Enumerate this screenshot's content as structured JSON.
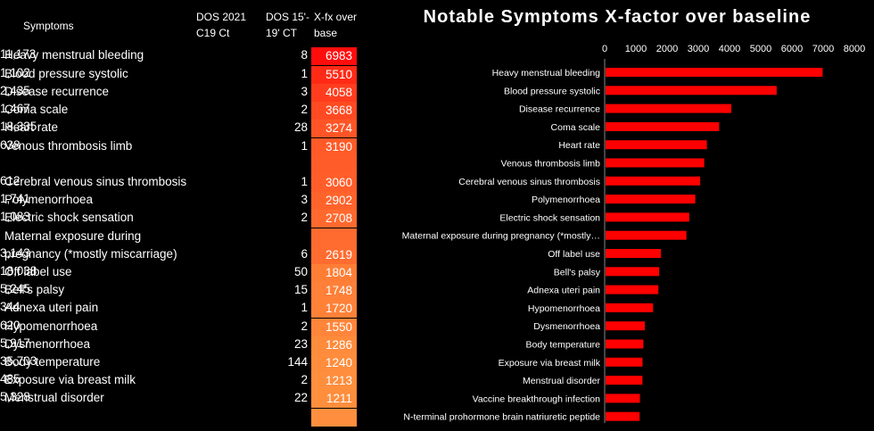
{
  "table": {
    "headers": {
      "symptoms": "Symptoms",
      "dos2021": [
        "DOS 2021",
        "C19 Ct"
      ],
      "dos15": [
        "DOS 15'-",
        "19' CT"
      ],
      "xfx": [
        "X-fx over",
        "base"
      ]
    },
    "rows": [
      {
        "symptom": "Heavy menstrual bleeding",
        "c19": "11,173",
        "ct": "8",
        "xfx": "6983"
      },
      {
        "symptom": "Blood pressure systolic",
        "c19": "1,102",
        "ct": "1",
        "xfx": "5510"
      },
      {
        "symptom": "Disease recurrence",
        "c19": "2,435",
        "ct": "3",
        "xfx": "4058"
      },
      {
        "symptom": "Coma scale",
        "c19": "1,467",
        "ct": "2",
        "xfx": "3668"
      },
      {
        "symptom": "Heart rate",
        "c19": "18,335",
        "ct": "28",
        "xfx": "3274"
      },
      {
        "symptom": "Venous thrombosis limb",
        "c19": "638",
        "ct": "1",
        "xfx": "3190"
      },
      {
        "symptom": "Cerebral venous sinus thrombosis",
        "c19": "612",
        "ct": "1",
        "xfx": "3060"
      },
      {
        "symptom": "Polymenorrhoea",
        "c19": "1,741",
        "ct": "3",
        "xfx": "2902"
      },
      {
        "symptom": "Electric shock sensation",
        "c19": "1,083",
        "ct": "2",
        "xfx": "2708"
      },
      {
        "symptom": "pregnancy (*mostly miscarriage)",
        "symptom_line1": "Maternal exposure during",
        "c19": "3,143",
        "ct": "6",
        "xfx": "2619"
      },
      {
        "symptom": "Off label use",
        "c19": "18,038",
        "ct": "50",
        "xfx": "1804"
      },
      {
        "symptom": "Bell's palsy",
        "c19": "5,245",
        "ct": "15",
        "xfx": "1748"
      },
      {
        "symptom": "Adnexa uteri pain",
        "c19": "344",
        "ct": "1",
        "xfx": "1720"
      },
      {
        "symptom": "Hypomenorrhoea",
        "c19": "620",
        "ct": "2",
        "xfx": "1550"
      },
      {
        "symptom": "Dysmenorrhoea",
        "c19": "5,917",
        "ct": "23",
        "xfx": "1286"
      },
      {
        "symptom": "Body temperature",
        "c19": "35,703",
        "ct": "144",
        "xfx": "1240"
      },
      {
        "symptom": "Exposure via breast milk",
        "c19": "485",
        "ct": "2",
        "xfx": "1213"
      },
      {
        "symptom": "Menstrual disorder",
        "c19": "5,328",
        "ct": "22",
        "xfx": "1211"
      }
    ]
  },
  "chart_data": {
    "type": "bar",
    "orientation": "horizontal",
    "title": "Notable Symptoms X-factor over baseline",
    "xlim": [
      0,
      8000
    ],
    "xticks": [
      "0",
      "1000",
      "2000",
      "3000",
      "4000",
      "5000",
      "6000",
      "7000",
      "8000"
    ],
    "axis_position": "top",
    "grid": false,
    "bar_color": "#ff0000",
    "categories": [
      "Heavy menstrual bleeding",
      "Blood pressure systolic",
      "Disease recurrence",
      "Coma scale",
      "Heart rate",
      "Venous thrombosis limb",
      "Cerebral venous sinus thrombosis",
      "Polymenorrhoea",
      "Electric shock sensation",
      "Maternal exposure during pregnancy (*mostly…",
      "Off label use",
      "Bell's palsy",
      "Adnexa uteri pain",
      "Hypomenorrhoea",
      "Dysmenorrhoea",
      "Body temperature",
      "Exposure via breast milk",
      "Menstrual disorder",
      "Vaccine breakthrough infection",
      "N-terminal prohormone brain natriuretic peptide"
    ],
    "values": [
      6983,
      5510,
      4058,
      3668,
      3274,
      3190,
      3060,
      2902,
      2708,
      2619,
      1804,
      1748,
      1720,
      1550,
      1286,
      1240,
      1213,
      1211,
      1130,
      1120
    ]
  }
}
